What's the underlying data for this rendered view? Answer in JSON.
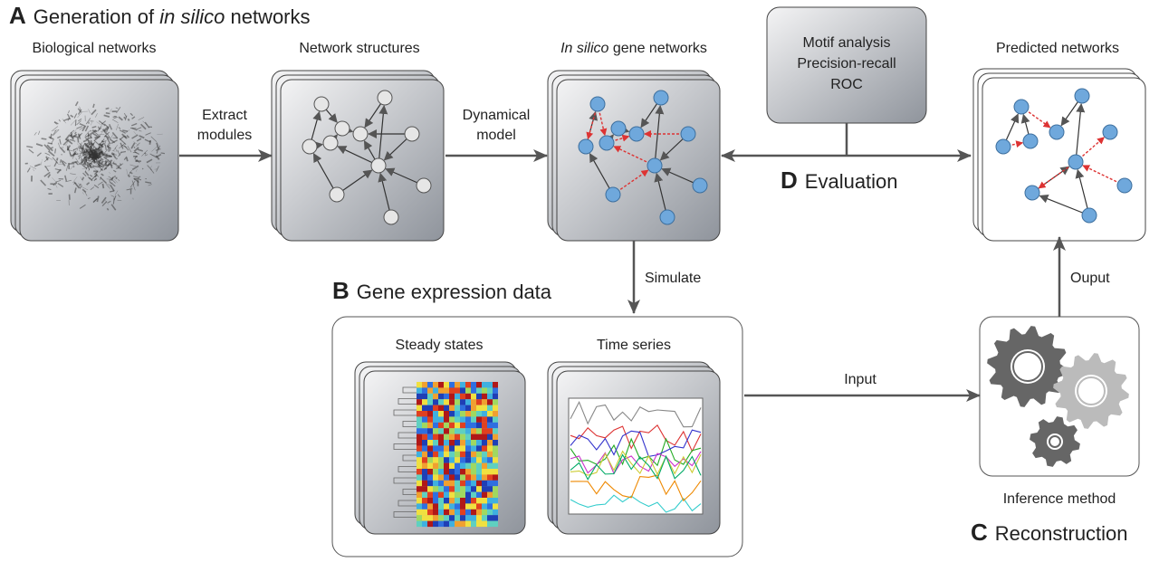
{
  "section_a": {
    "letter": "A",
    "title": [
      "Generation of ",
      "in silico",
      " networks"
    ]
  },
  "section_b": {
    "letter": "B",
    "title": "Gene expression data"
  },
  "section_c": {
    "letter": "C",
    "title": "Reconstruction"
  },
  "section_d": {
    "letter": "D",
    "title": "Evaluation"
  },
  "panels": {
    "biological": "Biological networks",
    "structures": "Network structures",
    "in_silico": [
      "In silico",
      " gene networks"
    ],
    "predicted": "Predicted networks",
    "steady_states": "Steady states",
    "time_series": "Time series",
    "inference": "Inference method"
  },
  "metrics": [
    "Motif analysis",
    "Precision-recall",
    "ROC"
  ],
  "arrows": {
    "extract": [
      "Extract",
      "modules"
    ],
    "dynamical": [
      "Dynamical",
      "model"
    ],
    "simulate": "Simulate",
    "input": "Input",
    "output": "Ouput"
  }
}
